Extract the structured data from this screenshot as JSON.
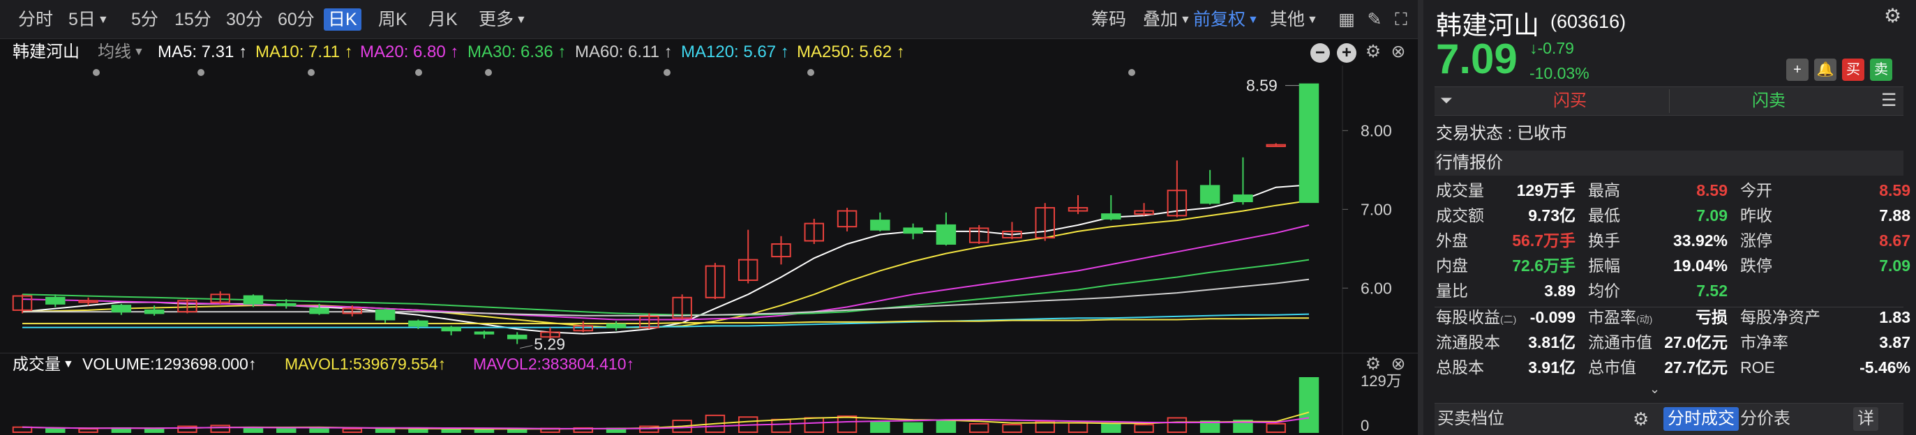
{
  "toolbar": {
    "periods": [
      "分时",
      "5日",
      "5分",
      "15分",
      "30分",
      "60分",
      "日K",
      "周K",
      "月K",
      "更多"
    ],
    "active_period": "日K",
    "right": [
      "筹码",
      "叠加",
      "前复权",
      "其他"
    ]
  },
  "stock": {
    "name": "韩建河山",
    "code": "(603616)",
    "price": "7.09",
    "change": "-0.79",
    "change_pct": "-10.03%"
  },
  "ma": {
    "type": "均线",
    "items": [
      {
        "label": "MA5: 7.31 ↑",
        "color": "#ffffff"
      },
      {
        "label": "MA10: 7.11 ↑",
        "color": "#f5e642"
      },
      {
        "label": "MA20: 6.80 ↑",
        "color": "#e640e6"
      },
      {
        "label": "MA30: 6.36 ↑",
        "color": "#3ed25c"
      },
      {
        "label": "MA60: 6.11 ↑",
        "color": "#d0d0d0"
      },
      {
        "label": "MA120: 5.67 ↑",
        "color": "#40d8f0"
      },
      {
        "label": "MA250: 5.62 ↑",
        "color": "#f7e84a"
      }
    ]
  },
  "volume": {
    "title": "成交量",
    "items": [
      {
        "label": "VOLUME:1293698.000↑",
        "color": "#ffffff"
      },
      {
        "label": "MAVOL1:539679.554↑",
        "color": "#f5e642"
      },
      {
        "label": "MAVOL2:383804.410↑",
        "color": "#e640e6"
      }
    ],
    "yticks": [
      "129万",
      "0"
    ]
  },
  "chart_data": {
    "type": "candlestick",
    "y_ticks": [
      6.0,
      7.0,
      8.0
    ],
    "y_tick_labels": [
      "6.00",
      "7.00",
      "8.00"
    ],
    "ylim": [
      5.25,
      8.72
    ],
    "annotations": {
      "high": "8.59",
      "low": "5.29"
    },
    "candles": [
      {
        "o": 5.72,
        "c": 5.9,
        "h": 5.92,
        "l": 5.68
      },
      {
        "o": 5.88,
        "c": 5.8,
        "h": 5.92,
        "l": 5.76
      },
      {
        "o": 5.82,
        "c": 5.84,
        "h": 5.88,
        "l": 5.78
      },
      {
        "o": 5.78,
        "c": 5.7,
        "h": 5.8,
        "l": 5.66
      },
      {
        "o": 5.72,
        "c": 5.68,
        "h": 5.78,
        "l": 5.65
      },
      {
        "o": 5.7,
        "c": 5.84,
        "h": 5.86,
        "l": 5.68
      },
      {
        "o": 5.82,
        "c": 5.92,
        "h": 5.96,
        "l": 5.8
      },
      {
        "o": 5.9,
        "c": 5.8,
        "h": 5.92,
        "l": 5.76
      },
      {
        "o": 5.8,
        "c": 5.78,
        "h": 5.86,
        "l": 5.74
      },
      {
        "o": 5.74,
        "c": 5.68,
        "h": 5.8,
        "l": 5.66
      },
      {
        "o": 5.68,
        "c": 5.74,
        "h": 5.78,
        "l": 5.64
      },
      {
        "o": 5.72,
        "c": 5.6,
        "h": 5.74,
        "l": 5.56
      },
      {
        "o": 5.58,
        "c": 5.52,
        "h": 5.6,
        "l": 5.48
      },
      {
        "o": 5.5,
        "c": 5.46,
        "h": 5.52,
        "l": 5.4
      },
      {
        "o": 5.44,
        "c": 5.42,
        "h": 5.46,
        "l": 5.36
      },
      {
        "o": 5.4,
        "c": 5.36,
        "h": 5.44,
        "l": 5.29
      },
      {
        "o": 5.38,
        "c": 5.44,
        "h": 5.5,
        "l": 5.34
      },
      {
        "o": 5.46,
        "c": 5.52,
        "h": 5.58,
        "l": 5.44
      },
      {
        "o": 5.54,
        "c": 5.5,
        "h": 5.58,
        "l": 5.46
      },
      {
        "o": 5.5,
        "c": 5.64,
        "h": 5.68,
        "l": 5.48
      },
      {
        "o": 5.62,
        "c": 5.88,
        "h": 5.92,
        "l": 5.6
      },
      {
        "o": 5.88,
        "c": 6.28,
        "h": 6.32,
        "l": 5.86
      },
      {
        "o": 6.1,
        "c": 6.36,
        "h": 6.74,
        "l": 6.06
      },
      {
        "o": 6.4,
        "c": 6.56,
        "h": 6.66,
        "l": 6.3
      },
      {
        "o": 6.6,
        "c": 6.82,
        "h": 6.88,
        "l": 6.56
      },
      {
        "o": 6.78,
        "c": 6.98,
        "h": 7.02,
        "l": 6.72
      },
      {
        "o": 6.86,
        "c": 6.74,
        "h": 6.96,
        "l": 6.72
      },
      {
        "o": 6.76,
        "c": 6.7,
        "h": 6.82,
        "l": 6.62
      },
      {
        "o": 6.8,
        "c": 6.56,
        "h": 6.96,
        "l": 6.54
      },
      {
        "o": 6.58,
        "c": 6.76,
        "h": 6.8,
        "l": 6.56
      },
      {
        "o": 6.64,
        "c": 6.72,
        "h": 6.84,
        "l": 6.62
      },
      {
        "o": 6.64,
        "c": 7.02,
        "h": 7.08,
        "l": 6.6
      },
      {
        "o": 6.98,
        "c": 7.02,
        "h": 7.18,
        "l": 6.94
      },
      {
        "o": 6.94,
        "c": 6.88,
        "h": 7.18,
        "l": 6.86
      },
      {
        "o": 6.94,
        "c": 6.98,
        "h": 7.08,
        "l": 6.92
      },
      {
        "o": 6.92,
        "c": 7.24,
        "h": 7.62,
        "l": 6.9
      },
      {
        "o": 7.3,
        "c": 7.08,
        "h": 7.5,
        "l": 7.06
      },
      {
        "o": 7.18,
        "c": 7.1,
        "h": 7.66,
        "l": 7.06
      },
      {
        "o": 7.8,
        "c": 7.82,
        "h": 7.84,
        "l": 7.8
      },
      {
        "o": 8.59,
        "c": 7.09,
        "h": 8.59,
        "l": 7.09
      }
    ],
    "ma_series": [
      {
        "name": "MA5",
        "color": "#ffffff",
        "values": [
          5.7,
          5.74,
          5.78,
          5.82,
          5.82,
          5.8,
          5.8,
          5.8,
          5.78,
          5.76,
          5.74,
          5.7,
          5.66,
          5.6,
          5.54,
          5.48,
          5.44,
          5.42,
          5.44,
          5.48,
          5.56,
          5.74,
          5.92,
          6.14,
          6.38,
          6.56,
          6.68,
          6.72,
          6.72,
          6.72,
          6.68,
          6.72,
          6.8,
          6.9,
          6.92,
          6.98,
          7.02,
          7.12,
          7.28,
          7.31
        ]
      },
      {
        "name": "MA10",
        "color": "#f5e642",
        "values": [
          5.7,
          5.71,
          5.72,
          5.74,
          5.75,
          5.76,
          5.77,
          5.78,
          5.78,
          5.78,
          5.76,
          5.74,
          5.72,
          5.68,
          5.64,
          5.6,
          5.56,
          5.52,
          5.5,
          5.5,
          5.52,
          5.58,
          5.66,
          5.78,
          5.92,
          6.08,
          6.22,
          6.34,
          6.44,
          6.52,
          6.58,
          6.64,
          6.72,
          6.78,
          6.82,
          6.86,
          6.92,
          6.98,
          7.05,
          7.11
        ]
      },
      {
        "name": "MA20",
        "color": "#e640e6",
        "values": [
          5.86,
          5.85,
          5.84,
          5.83,
          5.82,
          5.81,
          5.8,
          5.79,
          5.78,
          5.77,
          5.76,
          5.74,
          5.72,
          5.7,
          5.68,
          5.66,
          5.64,
          5.62,
          5.6,
          5.6,
          5.6,
          5.61,
          5.62,
          5.65,
          5.7,
          5.76,
          5.84,
          5.92,
          5.98,
          6.04,
          6.1,
          6.16,
          6.22,
          6.3,
          6.38,
          6.46,
          6.54,
          6.62,
          6.7,
          6.8
        ]
      },
      {
        "name": "MA30",
        "color": "#3ed25c",
        "values": [
          5.92,
          5.91,
          5.9,
          5.89,
          5.88,
          5.87,
          5.86,
          5.85,
          5.84,
          5.83,
          5.82,
          5.81,
          5.8,
          5.78,
          5.76,
          5.74,
          5.72,
          5.7,
          5.68,
          5.67,
          5.66,
          5.66,
          5.66,
          5.67,
          5.68,
          5.7,
          5.74,
          5.78,
          5.82,
          5.86,
          5.9,
          5.94,
          5.98,
          6.04,
          6.09,
          6.14,
          6.2,
          6.25,
          6.3,
          6.36
        ]
      },
      {
        "name": "MA60",
        "color": "#d0d0d0",
        "values": [
          5.7,
          5.7,
          5.7,
          5.7,
          5.7,
          5.7,
          5.7,
          5.7,
          5.7,
          5.7,
          5.7,
          5.7,
          5.7,
          5.69,
          5.68,
          5.67,
          5.66,
          5.65,
          5.65,
          5.65,
          5.65,
          5.66,
          5.67,
          5.68,
          5.7,
          5.72,
          5.74,
          5.76,
          5.78,
          5.8,
          5.82,
          5.84,
          5.86,
          5.88,
          5.91,
          5.94,
          5.98,
          6.02,
          6.06,
          6.11
        ]
      },
      {
        "name": "MA120",
        "color": "#40d8f0",
        "values": [
          5.5,
          5.5,
          5.5,
          5.5,
          5.5,
          5.5,
          5.5,
          5.5,
          5.5,
          5.5,
          5.5,
          5.5,
          5.5,
          5.5,
          5.5,
          5.5,
          5.5,
          5.5,
          5.5,
          5.51,
          5.51,
          5.52,
          5.52,
          5.53,
          5.54,
          5.55,
          5.56,
          5.57,
          5.58,
          5.59,
          5.6,
          5.61,
          5.62,
          5.62,
          5.63,
          5.64,
          5.65,
          5.66,
          5.66,
          5.67
        ]
      },
      {
        "name": "MA250",
        "color": "#f7e84a",
        "values": [
          5.55,
          5.55,
          5.55,
          5.55,
          5.55,
          5.55,
          5.55,
          5.55,
          5.55,
          5.55,
          5.55,
          5.55,
          5.55,
          5.55,
          5.55,
          5.55,
          5.55,
          5.55,
          5.55,
          5.55,
          5.56,
          5.56,
          5.56,
          5.56,
          5.57,
          5.57,
          5.57,
          5.58,
          5.58,
          5.58,
          5.59,
          5.59,
          5.59,
          5.6,
          5.6,
          5.6,
          5.61,
          5.61,
          5.62,
          5.62
        ]
      }
    ],
    "volume": [
      12,
      9,
      8,
      10,
      9,
      14,
      16,
      10,
      9,
      10,
      8,
      9,
      8,
      7,
      7,
      8,
      9,
      10,
      9,
      14,
      28,
      40,
      36,
      30,
      34,
      38,
      24,
      22,
      26,
      20,
      18,
      26,
      22,
      20,
      18,
      34,
      26,
      28,
      20,
      129
    ],
    "volume_ylim": [
      0,
      129
    ]
  },
  "panel": {
    "flash_buy": "闪买",
    "flash_sell": "闪卖",
    "trade_status": "交易状态 : 已收市",
    "quote_title": "行情报价",
    "rows": [
      [
        {
          "l": "成交量",
          "v": "129万手",
          "c": "white"
        },
        {
          "l": "最高",
          "v": "8.59",
          "c": "red"
        },
        {
          "l": "今开",
          "v": "8.59",
          "c": "red"
        }
      ],
      [
        {
          "l": "成交额",
          "v": "9.73亿",
          "c": "white"
        },
        {
          "l": "最低",
          "v": "7.09",
          "c": "green"
        },
        {
          "l": "昨收",
          "v": "7.88",
          "c": "white"
        }
      ],
      [
        {
          "l": "外盘",
          "v": "56.7万手",
          "c": "red"
        },
        {
          "l": "换手",
          "v": "33.92%",
          "c": "white"
        },
        {
          "l": "涨停",
          "v": "8.67",
          "c": "red"
        }
      ],
      [
        {
          "l": "内盘",
          "v": "72.6万手",
          "c": "green"
        },
        {
          "l": "振幅",
          "v": "19.04%",
          "c": "white"
        },
        {
          "l": "跌停",
          "v": "7.09",
          "c": "green"
        }
      ],
      [
        {
          "l": "量比",
          "v": "3.89",
          "c": "white"
        },
        {
          "l": "均价",
          "v": "7.52",
          "c": "green"
        },
        {
          "l": "",
          "v": "",
          "c": "white"
        }
      ]
    ],
    "rows2": [
      [
        {
          "l": "每股收益",
          "sub": "(二)",
          "v": "-0.099"
        },
        {
          "l": "市盈率",
          "sub": "(动)",
          "v": "亏损"
        },
        {
          "l": "每股净资产",
          "v": "1.83"
        }
      ],
      [
        {
          "l": "流通股本",
          "v": "3.81亿"
        },
        {
          "l": "流通市值",
          "v": "27.0亿元"
        },
        {
          "l": "市净率",
          "v": "3.87"
        }
      ],
      [
        {
          "l": "总股本",
          "v": "3.91亿"
        },
        {
          "l": "总市值",
          "v": "27.7亿元"
        },
        {
          "l": "ROE",
          "v": "-5.46%"
        }
      ]
    ],
    "bottom": {
      "order_book": "买卖档位",
      "time_sales": "分时成交",
      "price_table": "分价表",
      "detail": "详"
    }
  }
}
